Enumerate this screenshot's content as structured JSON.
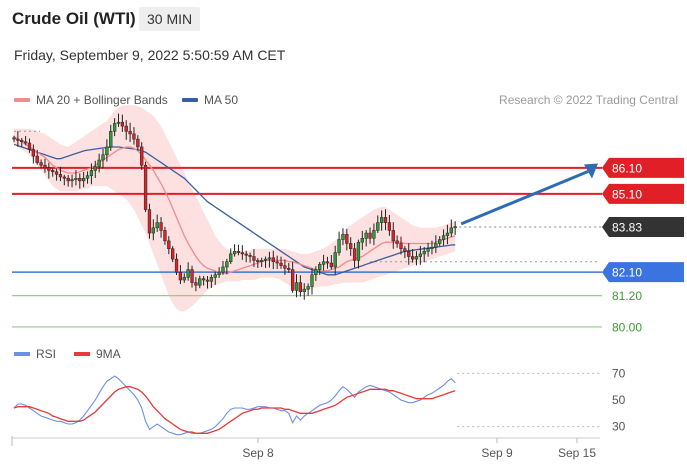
{
  "header": {
    "title": "Crude Oil (WTI)",
    "timeframe": "30 MIN",
    "datetime": "Friday, September 9, 2022 5:50:59 AM CET",
    "credit": "Research © 2022 Trading Central"
  },
  "colors": {
    "ma20": "#f28b8b",
    "ma50": "#3a5fa0",
    "band_fill": "#fde0e0",
    "bull": "#2e9b3a",
    "bear": "#d8232a",
    "resistance": "#e01f26",
    "support_blue": "#3b73e0",
    "support_green": "#8fcf86",
    "rsi": "#6d8fe6",
    "rsi_ma": "#e83a3a",
    "arrow": "#2f6bb3",
    "current": "#333333"
  },
  "chart_data": [
    {
      "type": "candlestick",
      "legend": [
        {
          "name": "MA 20 + Bollinger Bands",
          "color": "#f28b8b"
        },
        {
          "name": "MA 50",
          "color": "#3a5fa0"
        }
      ],
      "x_ticks": [
        "Sep 8",
        "Sep 9",
        "Sep 15"
      ],
      "ylim": [
        79.5,
        88.7
      ],
      "levels": [
        {
          "label": "86.10",
          "value": 86.1,
          "kind": "resistance"
        },
        {
          "label": "85.10",
          "value": 85.1,
          "kind": "resistance"
        },
        {
          "label": "83.83",
          "value": 83.83,
          "kind": "current"
        },
        {
          "label": "82.10",
          "value": 82.1,
          "kind": "support_blue"
        },
        {
          "label": "81.20",
          "value": 81.2,
          "kind": "support_green"
        },
        {
          "label": "80.00",
          "value": 80.0,
          "kind": "support_green"
        }
      ],
      "close": [
        87.2,
        87.15,
        87.1,
        87.05,
        86.8,
        86.55,
        86.3,
        86.2,
        86.1,
        86.0,
        85.95,
        85.85,
        85.75,
        85.7,
        85.6,
        85.65,
        85.7,
        85.6,
        85.7,
        85.8,
        86.0,
        86.15,
        86.4,
        86.6,
        86.9,
        87.5,
        87.8,
        87.85,
        87.7,
        87.5,
        87.4,
        87.2,
        86.9,
        86.2,
        84.5,
        83.6,
        83.8,
        84.0,
        83.7,
        83.3,
        83.0,
        82.6,
        82.1,
        81.8,
        81.9,
        82.2,
        81.7,
        81.6,
        81.85,
        81.8,
        81.75,
        81.9,
        82.0,
        82.1,
        82.3,
        82.5,
        82.8,
        82.9,
        82.85,
        82.8,
        82.75,
        82.7,
        82.55,
        82.5,
        82.55,
        82.6,
        82.65,
        82.5,
        82.45,
        82.35,
        82.25,
        82.2,
        81.4,
        81.7,
        81.35,
        81.45,
        81.55,
        82.0,
        82.2,
        82.4,
        82.5,
        82.45,
        82.3,
        82.85,
        83.35,
        83.55,
        83.2,
        83.0,
        82.55,
        83.25,
        83.4,
        83.6,
        83.4,
        83.7,
        84.0,
        84.2,
        84.0,
        83.7,
        83.3,
        83.2,
        83.0,
        82.9,
        82.7,
        82.6,
        82.7,
        82.8,
        82.9,
        83.0,
        83.05,
        83.2,
        83.35,
        83.5,
        83.6,
        83.8,
        83.85
      ],
      "ma20": [
        87.3,
        87.2,
        87.1,
        87.0,
        86.9,
        86.8,
        86.7,
        86.6,
        86.5,
        86.35,
        86.2,
        86.1,
        86.0,
        85.95,
        85.9,
        85.9,
        85.9,
        85.95,
        86.0,
        86.05,
        86.1,
        86.2,
        86.3,
        86.4,
        86.5,
        86.6,
        86.7,
        86.8,
        86.85,
        86.9,
        86.9,
        86.85,
        86.75,
        86.6,
        86.4,
        86.2,
        86.0,
        85.75,
        85.5,
        85.2,
        84.9,
        84.55,
        84.2,
        83.85,
        83.5,
        83.2,
        82.95,
        82.7,
        82.5,
        82.35,
        82.25,
        82.2,
        82.15,
        82.1,
        82.05,
        82.05,
        82.1,
        82.15,
        82.2,
        82.25,
        82.3,
        82.35,
        82.4,
        82.45,
        82.5,
        82.55,
        82.55,
        82.55,
        82.55,
        82.55,
        82.55,
        82.5,
        82.5,
        82.45,
        82.4,
        82.35,
        82.3,
        82.25,
        82.2,
        82.15,
        82.15,
        82.15,
        82.2,
        82.25,
        82.3,
        82.4,
        82.5,
        82.55,
        82.6,
        82.65,
        82.7,
        82.8,
        82.9,
        83.0,
        83.1,
        83.2,
        83.25,
        83.25,
        83.25,
        83.25,
        83.25,
        83.2,
        83.2,
        83.2,
        83.2,
        83.2,
        83.2,
        83.2,
        83.2,
        83.25,
        83.3,
        83.35,
        83.4,
        83.45,
        83.5
      ],
      "ma50": [
        87.0,
        86.95,
        86.9,
        86.85,
        86.8,
        86.75,
        86.7,
        86.65,
        86.6,
        86.55,
        86.5,
        86.45,
        86.45,
        86.5,
        86.55,
        86.6,
        86.65,
        86.7,
        86.75,
        86.78,
        86.8,
        86.82,
        86.84,
        86.86,
        86.88,
        86.9,
        86.9,
        86.9,
        86.88,
        86.86,
        86.84,
        86.82,
        86.8,
        86.75,
        86.7,
        86.6,
        86.5,
        86.4,
        86.3,
        86.2,
        86.1,
        86.0,
        85.9,
        85.8,
        85.7,
        85.55,
        85.4,
        85.25,
        85.1,
        84.95,
        84.8,
        84.7,
        84.6,
        84.5,
        84.4,
        84.3,
        84.2,
        84.1,
        84.0,
        83.9,
        83.8,
        83.7,
        83.6,
        83.5,
        83.4,
        83.3,
        83.2,
        83.1,
        83.0,
        82.9,
        82.8,
        82.7,
        82.6,
        82.5,
        82.4,
        82.3,
        82.25,
        82.2,
        82.15,
        82.1,
        82.05,
        82.0,
        82.0,
        82.0,
        82.05,
        82.1,
        82.15,
        82.2,
        82.25,
        82.3,
        82.35,
        82.4,
        82.45,
        82.5,
        82.55,
        82.6,
        82.65,
        82.7,
        82.75,
        82.8,
        82.85,
        82.9,
        82.92,
        82.94,
        82.96,
        82.98,
        83.0,
        83.02,
        83.04,
        83.06,
        83.08,
        83.1,
        83.12,
        83.14,
        83.15
      ],
      "bb_upper": [
        87.6,
        87.6,
        87.6,
        87.6,
        87.6,
        87.55,
        87.5,
        87.45,
        87.4,
        87.3,
        87.2,
        87.1,
        87.0,
        86.95,
        86.9,
        87.0,
        87.1,
        87.2,
        87.3,
        87.4,
        87.5,
        87.6,
        87.7,
        87.8,
        87.9,
        88.1,
        88.3,
        88.4,
        88.5,
        88.5,
        88.5,
        88.5,
        88.45,
        88.4,
        88.3,
        88.2,
        88.1,
        87.9,
        87.7,
        87.4,
        87.1,
        86.8,
        86.5,
        86.2,
        85.9,
        85.6,
        85.3,
        85.0,
        84.7,
        84.4,
        84.1,
        83.8,
        83.5,
        83.3,
        83.1,
        83.0,
        82.9,
        82.9,
        82.9,
        82.9,
        82.9,
        82.95,
        83.0,
        83.0,
        83.0,
        83.0,
        83.0,
        83.0,
        83.0,
        83.0,
        83.0,
        82.95,
        82.9,
        82.85,
        82.8,
        82.8,
        82.8,
        82.85,
        82.9,
        82.95,
        83.0,
        83.1,
        83.2,
        83.3,
        83.45,
        83.6,
        83.8,
        83.9,
        84.0,
        84.1,
        84.2,
        84.3,
        84.4,
        84.5,
        84.55,
        84.6,
        84.6,
        84.5,
        84.4,
        84.3,
        84.2,
        84.1,
        84.0,
        83.9,
        83.85,
        83.8,
        83.8,
        83.8,
        83.8,
        83.8,
        83.85,
        83.9,
        83.95,
        84.0,
        84.05
      ],
      "bb_lower": [
        87.0,
        86.9,
        86.8,
        86.7,
        86.6,
        86.4,
        86.2,
        86.0,
        85.8,
        85.6,
        85.4,
        85.3,
        85.2,
        85.2,
        85.2,
        85.2,
        85.2,
        85.25,
        85.3,
        85.3,
        85.4,
        85.4,
        85.4,
        85.4,
        85.4,
        85.3,
        85.2,
        85.1,
        85.0,
        84.9,
        84.7,
        84.5,
        84.2,
        83.9,
        83.6,
        83.2,
        82.8,
        82.4,
        82.0,
        81.6,
        81.2,
        80.9,
        80.7,
        80.6,
        80.6,
        80.7,
        80.8,
        80.95,
        81.1,
        81.25,
        81.4,
        81.5,
        81.6,
        81.65,
        81.7,
        81.75,
        81.75,
        81.75,
        81.75,
        81.8,
        81.8,
        81.8,
        81.8,
        81.85,
        81.9,
        81.9,
        81.9,
        81.9,
        81.85,
        81.8,
        81.7,
        81.6,
        81.5,
        81.4,
        81.35,
        81.35,
        81.4,
        81.45,
        81.5,
        81.55,
        81.55,
        81.55,
        81.6,
        81.65,
        81.65,
        81.7,
        81.7,
        81.7,
        81.7,
        81.7,
        81.7,
        81.75,
        81.8,
        81.85,
        81.9,
        81.95,
        82.0,
        82.05,
        82.1,
        82.15,
        82.2,
        82.25,
        82.3,
        82.35,
        82.4,
        82.45,
        82.5,
        82.55,
        82.6,
        82.65,
        82.7,
        82.75,
        82.8,
        82.85,
        82.9
      ]
    },
    {
      "type": "line",
      "legend": [
        {
          "name": "RSI",
          "color": "#6d8fe6"
        },
        {
          "name": "9MA",
          "color": "#e83a3a"
        }
      ],
      "y_ticks": [
        70,
        50,
        30
      ],
      "ylim": [
        20,
        80
      ],
      "rsi": [
        44,
        47,
        47,
        46,
        44,
        42,
        40,
        38,
        37,
        36,
        35,
        34,
        34,
        33,
        32,
        32,
        33,
        35,
        38,
        42,
        46,
        50,
        55,
        60,
        64,
        66,
        68,
        66,
        63,
        60,
        57,
        54,
        50,
        44,
        34,
        28,
        30,
        32,
        30,
        28,
        26,
        25,
        24,
        24,
        25,
        26,
        25,
        25,
        25,
        26,
        27,
        28,
        30,
        33,
        36,
        40,
        43,
        44,
        44,
        44,
        43,
        43,
        44,
        45,
        45,
        45,
        44,
        44,
        43,
        42,
        42,
        40,
        33,
        38,
        35,
        38,
        40,
        42,
        44,
        46,
        47,
        48,
        50,
        53,
        57,
        60,
        58,
        55,
        52,
        56,
        58,
        60,
        61,
        60,
        59,
        58,
        57,
        56,
        54,
        52,
        50,
        49,
        48,
        48,
        49,
        50,
        52,
        54,
        55,
        57,
        59,
        61,
        64,
        66,
        63
      ],
      "ma9": [
        44,
        45,
        45,
        45,
        45,
        44,
        43,
        42,
        41,
        40,
        38,
        37,
        36,
        35,
        34,
        34,
        34,
        34,
        35,
        37,
        39,
        41,
        44,
        47,
        50,
        53,
        56,
        58,
        59,
        60,
        60,
        59,
        58,
        56,
        53,
        49,
        45,
        42,
        39,
        36,
        34,
        32,
        30,
        28,
        27,
        26,
        26,
        25,
        25,
        25,
        25,
        26,
        27,
        28,
        30,
        32,
        34,
        36,
        38,
        40,
        41,
        42,
        43,
        43,
        44,
        44,
        44,
        44,
        44,
        44,
        43,
        43,
        42,
        41,
        40,
        40,
        40,
        40,
        41,
        42,
        43,
        44,
        45,
        46,
        48,
        50,
        52,
        53,
        54,
        55,
        56,
        57,
        58,
        58,
        58,
        58,
        58,
        57,
        57,
        56,
        55,
        54,
        53,
        52,
        51,
        51,
        51,
        51,
        51,
        52,
        53,
        54,
        55,
        56,
        57
      ]
    }
  ]
}
